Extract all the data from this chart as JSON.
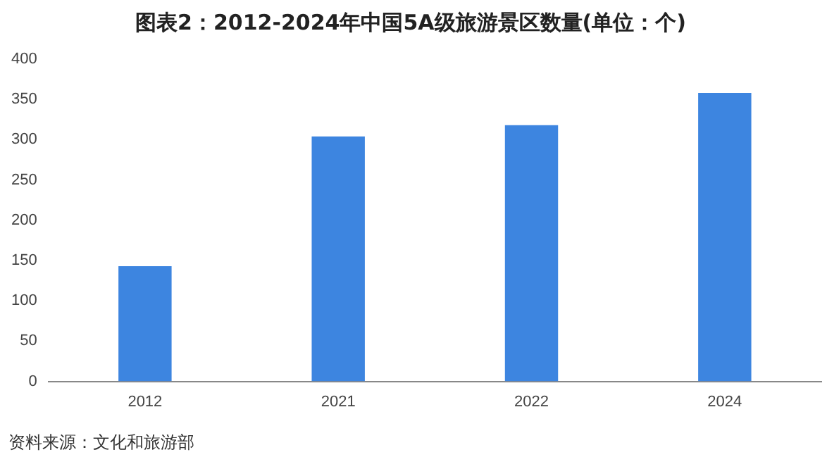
{
  "chart_data": {
    "type": "bar",
    "title": "图表2：2012-2024年中国5A级旅游景区数量(单位：个)",
    "categories": [
      "2012",
      "2021",
      "2022",
      "2024"
    ],
    "values": [
      143,
      304,
      318,
      358
    ],
    "color": "#3d85e0",
    "ylim": [
      0,
      400
    ],
    "yticks": [
      0,
      50,
      100,
      150,
      200,
      250,
      300,
      350,
      400
    ],
    "grid": false,
    "legend": false,
    "annotations": [
      "资料来源：文化和旅游部"
    ]
  }
}
